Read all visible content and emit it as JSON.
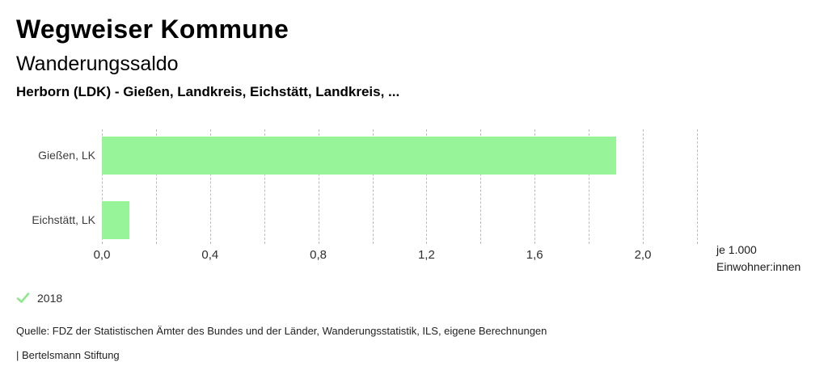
{
  "header": {
    "title": "Wegweiser Kommune",
    "subtitle": "Wanderungssaldo",
    "comparison": "Herborn (LDK) - Gießen, Landkreis, Eichstätt, Landkreis, ..."
  },
  "chart_data": {
    "type": "bar",
    "orientation": "horizontal",
    "title": "Wanderungssaldo",
    "categories": [
      "Gießen, LK",
      "Eichstätt, LK"
    ],
    "series": [
      {
        "name": "2018",
        "values": [
          1.9,
          0.1
        ]
      }
    ],
    "xlabel": "je 1.000 Einwohner:innen",
    "xlim": [
      0,
      2.2
    ],
    "gridline_step": 0.2,
    "grid": true,
    "x_ticks": [
      {
        "value": 0.0,
        "label": "0,0"
      },
      {
        "value": 0.4,
        "label": "0,4"
      },
      {
        "value": 0.8,
        "label": "0,8"
      },
      {
        "value": 1.2,
        "label": "1,2"
      },
      {
        "value": 1.6,
        "label": "1,6"
      },
      {
        "value": 2.0,
        "label": "2,0"
      }
    ],
    "legend_position": "bottom-left"
  },
  "unit_label": {
    "line1": "je 1.000",
    "line2": "Einwohner:innen"
  },
  "legend": {
    "year_label": "2018",
    "checked": true
  },
  "footer": {
    "source": "Quelle: FDZ der Statistischen Ämter des Bundes und der Länder, Wanderungsstatistik, ILS, eigene Berechnungen",
    "brand": "| Bertelsmann Stiftung"
  },
  "colors": {
    "bar": "#98f498",
    "check": "#8ce98c",
    "grid": "#bdbdbd"
  }
}
